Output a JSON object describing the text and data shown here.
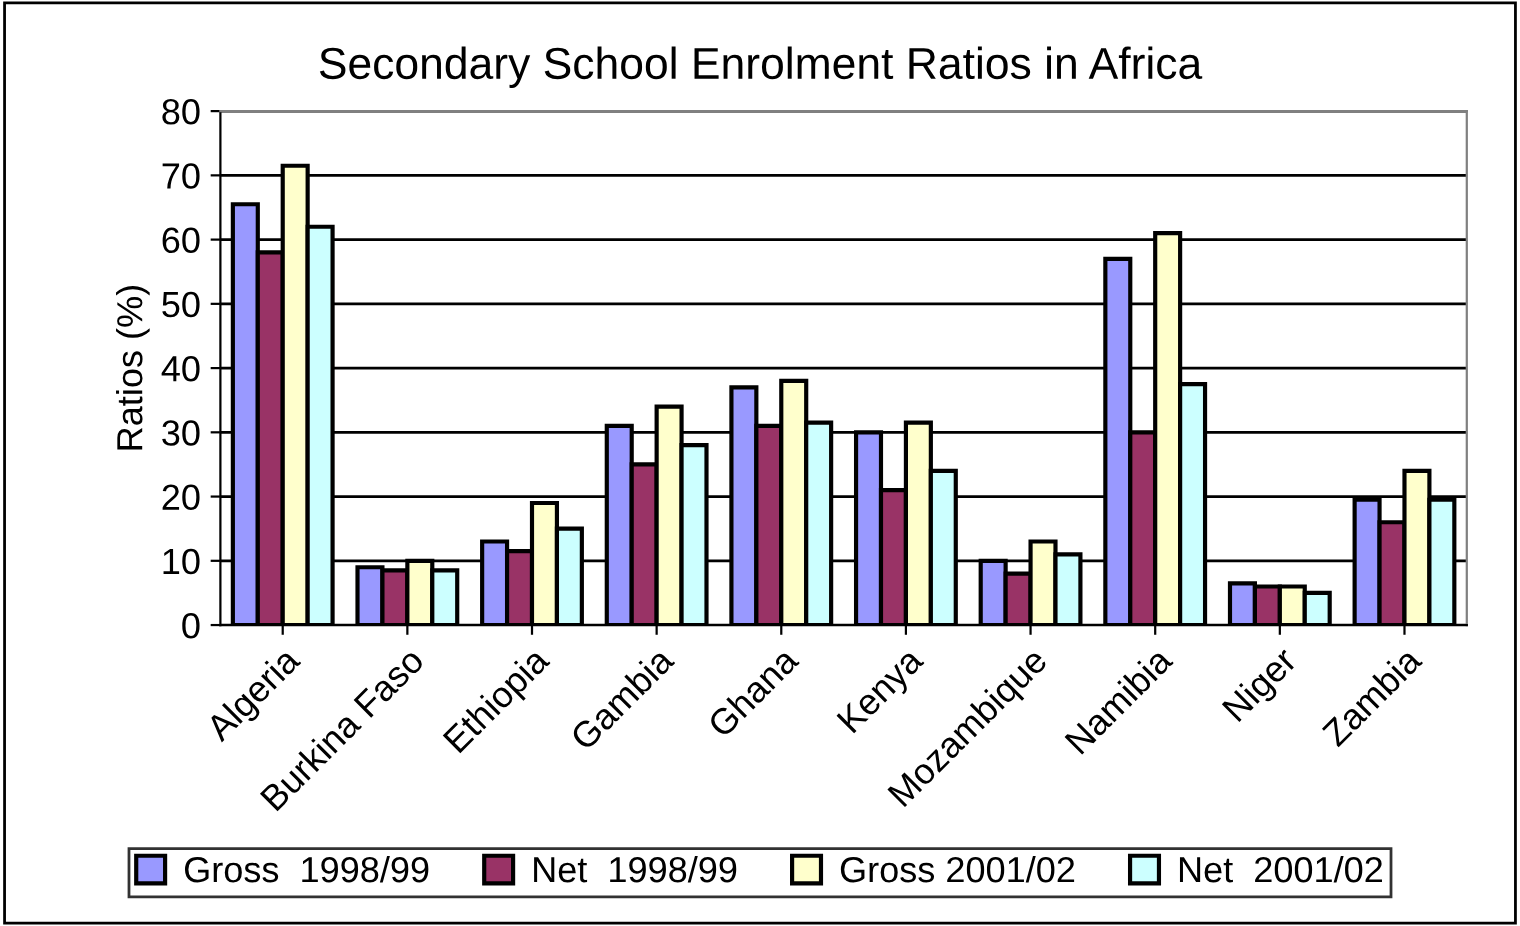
{
  "chart_data": {
    "type": "bar",
    "title": "Secondary School Enrolment Ratios in Africa",
    "ylabel": "Ratios (%)",
    "categories": [
      "Algeria",
      "Burkina Faso",
      "Ethiopia",
      "Gambia",
      "Ghana",
      "Kenya",
      "Mozambique",
      "Namibia",
      "Niger",
      "Zambia"
    ],
    "series": [
      {
        "name": "Gross  1998/99",
        "color": "#9999ff",
        "values": [
          65.5,
          9,
          13,
          31,
          37,
          30,
          10,
          57,
          6.5,
          19.5
        ]
      },
      {
        "name": "Net  1998/99",
        "color": "#993366",
        "values": [
          58,
          8.5,
          11.5,
          25,
          31,
          21,
          8,
          30,
          6,
          16
        ]
      },
      {
        "name": "Gross 2001/02",
        "color": "#ffffcc",
        "values": [
          71.5,
          10,
          19,
          34,
          38,
          31.5,
          13,
          61,
          6,
          24
        ]
      },
      {
        "name": "Net  2001/02",
        "color": "#ccffff",
        "values": [
          62,
          8.5,
          15,
          28,
          31.5,
          24,
          11,
          37.5,
          5,
          19.5
        ]
      }
    ],
    "ylim": [
      0,
      80
    ],
    "yticks": [
      0,
      10,
      20,
      30,
      40,
      50,
      60,
      70,
      80
    ],
    "grid": "y",
    "legend": "bottom"
  }
}
